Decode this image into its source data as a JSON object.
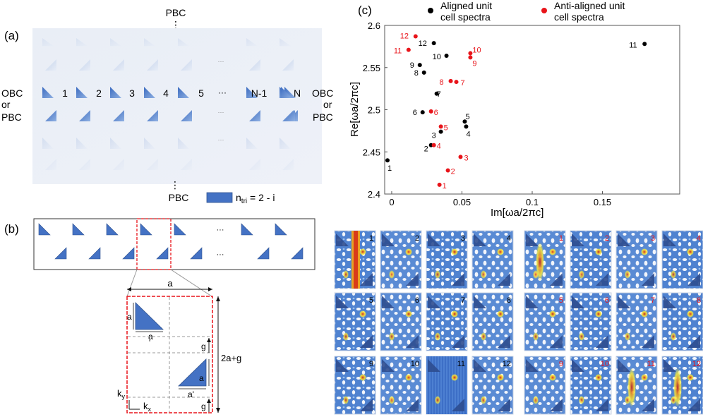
{
  "panels": {
    "a": {
      "label": "(a)",
      "top": "PBC",
      "bottom": "PBC",
      "vdots": "⋮",
      "left": [
        "OBC",
        "or",
        "PBC"
      ],
      "right": [
        "OBC",
        "or",
        "PBC"
      ],
      "indices": [
        "1",
        "2",
        "3",
        "4",
        "5",
        "···",
        "N-1",
        "N"
      ],
      "dots": "···",
      "legend": "n_tri = 2 - i",
      "legend_main": "n",
      "legend_sub": "tri",
      "legend_rest": " = 2 - i"
    },
    "b": {
      "label": "(b)",
      "dots": "···",
      "dim_a": "a",
      "dim_tri_a_vertical": "a",
      "dim_tri_a_horizontal": "a",
      "tick": "'",
      "dim_g": "g",
      "dim_total": "2a+g",
      "dim_tri2_a": "a",
      "dim_tri2_aprime": "a'",
      "dim_g_bottom": "g",
      "axis_y": "k_y",
      "axis_x": "k_x",
      "axis_y_main": "k",
      "axis_y_sub": "y",
      "axis_x_main": "k",
      "axis_x_sub": "x"
    },
    "c": {
      "label": "(c)"
    }
  },
  "chart_data": {
    "type": "scatter",
    "xlabel": "Im[ωa/2πc]",
    "ylabel": "Re[ωa/2πc]",
    "xlim": [
      -0.005,
      0.205
    ],
    "ylim": [
      2.4,
      2.6
    ],
    "x_ticks": [
      0,
      0.05,
      0.1,
      0.15
    ],
    "x_tick_labels": [
      "0",
      "0.05",
      "0.1",
      "0.15"
    ],
    "y_ticks": [
      2.4,
      2.45,
      2.5,
      2.55,
      2.6
    ],
    "y_tick_labels": [
      "2.4",
      "2.45",
      "2.5",
      "2.55",
      "2.6"
    ],
    "legend": [
      {
        "label": "Aligned unit cell spectra",
        "lines": [
          "Aligned unit",
          "cell spectra"
        ],
        "color": "#000000"
      },
      {
        "label": "Anti-aligned unit cell spectra",
        "lines": [
          "Anti-aligned unit",
          "cell spectra"
        ],
        "color": "#e8141a"
      }
    ],
    "series": [
      {
        "name": "Aligned unit cell spectra",
        "color": "#000000",
        "points": [
          {
            "label": "1",
            "x": -0.003,
            "y": 2.44
          },
          {
            "label": "2",
            "x": 0.028,
            "y": 2.458
          },
          {
            "label": "3",
            "x": 0.035,
            "y": 2.474
          },
          {
            "label": "4",
            "x": 0.053,
            "y": 2.48
          },
          {
            "label": "5",
            "x": 0.052,
            "y": 2.486
          },
          {
            "label": "6",
            "x": 0.022,
            "y": 2.497
          },
          {
            "label": "7",
            "x": 0.032,
            "y": 2.519
          },
          {
            "label": "8",
            "x": 0.023,
            "y": 2.544
          },
          {
            "label": "9",
            "x": 0.02,
            "y": 2.553
          },
          {
            "label": "10",
            "x": 0.039,
            "y": 2.564
          },
          {
            "label": "11",
            "x": 0.18,
            "y": 2.578
          },
          {
            "label": "12",
            "x": 0.03,
            "y": 2.579
          }
        ]
      },
      {
        "name": "Anti-aligned unit cell spectra",
        "color": "#e8141a",
        "points": [
          {
            "label": "1",
            "x": 0.034,
            "y": 2.411
          },
          {
            "label": "2",
            "x": 0.04,
            "y": 2.428
          },
          {
            "label": "3",
            "x": 0.049,
            "y": 2.444
          },
          {
            "label": "4",
            "x": 0.03,
            "y": 2.458
          },
          {
            "label": "5",
            "x": 0.035,
            "y": 2.48
          },
          {
            "label": "6",
            "x": 0.028,
            "y": 2.498
          },
          {
            "label": "7",
            "x": 0.046,
            "y": 2.533
          },
          {
            "label": "8",
            "x": 0.042,
            "y": 2.534
          },
          {
            "label": "9",
            "x": 0.056,
            "y": 2.562
          },
          {
            "label": "10",
            "x": 0.056,
            "y": 2.567
          },
          {
            "label": "11",
            "x": 0.012,
            "y": 2.571
          },
          {
            "label": "12",
            "x": 0.017,
            "y": 2.587
          }
        ]
      }
    ]
  },
  "mode_maps": {
    "aligned_labels": [
      "1",
      "2",
      "3",
      "4",
      "5",
      "6",
      "7",
      "8",
      "9",
      "10",
      "11",
      "12"
    ],
    "anti_aligned_labels": [
      "1",
      "2",
      "3",
      "4",
      "5",
      "6",
      "7",
      "8",
      "9",
      "10",
      "11",
      "12"
    ],
    "aligned_label_color": "#000000",
    "anti_aligned_label_color": "#e8141a"
  }
}
